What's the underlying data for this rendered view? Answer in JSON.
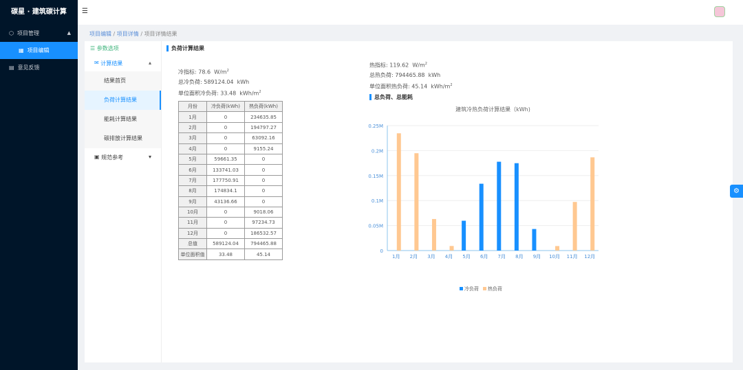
{
  "app": {
    "title": "碳星 · 建筑碳计算"
  },
  "sidebar": {
    "items": [
      {
        "label": "项目管理",
        "icon": "cube-icon"
      },
      {
        "label": "项目编辑",
        "icon": "grid-icon"
      },
      {
        "label": "意见反馈",
        "icon": "feedback-icon"
      }
    ]
  },
  "breadcrumb": [
    "项目编辑",
    "项目详情",
    "项目详情结果"
  ],
  "leftnav": {
    "top": "参数选项",
    "group": "计算结果",
    "items": [
      "结果首页",
      "负荷计算结果",
      "能耗计算结果",
      "碳排放计算结果"
    ],
    "group2": "规范参考"
  },
  "section_title": "负荷计算结果",
  "cold": {
    "index_label": "冷指标:",
    "index": "78.6",
    "index_unit": "W/m",
    "total_label": "总冷负荷:",
    "total": "589124.04",
    "total_unit": "kWh",
    "unit_label": "单位面积冷负荷:",
    "unit": "33.48",
    "unit_unit": "kWh/m"
  },
  "heat": {
    "index_label": "热指标:",
    "index": "119.62",
    "index_unit": "W/m",
    "total_label": "总热负荷:",
    "total": "794465.88",
    "total_unit": "kWh",
    "unit_label": "单位面积热负荷:",
    "unit": "45.14",
    "unit_unit": "kWh/m"
  },
  "table": {
    "headers": [
      "月份",
      "冷负荷(kWh)",
      "热负荷(kWh)"
    ],
    "rows": [
      [
        "1月",
        "0",
        "234635.85"
      ],
      [
        "2月",
        "0",
        "194797.27"
      ],
      [
        "3月",
        "0",
        "63092.16"
      ],
      [
        "4月",
        "0",
        "9155.24"
      ],
      [
        "5月",
        "59661.35",
        "0"
      ],
      [
        "6月",
        "133741.03",
        "0"
      ],
      [
        "7月",
        "177750.91",
        "0"
      ],
      [
        "8月",
        "174834.1",
        "0"
      ],
      [
        "9月",
        "43136.66",
        "0"
      ],
      [
        "10月",
        "0",
        "9018.06"
      ],
      [
        "11月",
        "0",
        "97234.73"
      ],
      [
        "12月",
        "0",
        "186532.57"
      ],
      [
        "总值",
        "589124.04",
        "794465.88"
      ],
      [
        "单位面积值",
        "33.48",
        "45.14"
      ]
    ]
  },
  "chart_section_title": "总负荷、总能耗",
  "chart_data": {
    "type": "bar",
    "title": "建筑冷热负荷计算结果（kWh)",
    "categories": [
      "1月",
      "2月",
      "3月",
      "4月",
      "5月",
      "6月",
      "7月",
      "8月",
      "9月",
      "10月",
      "11月",
      "12月"
    ],
    "series": [
      {
        "name": "冷负荷",
        "color": "#1890ff",
        "values": [
          0,
          0,
          0,
          0,
          59661.35,
          133741.03,
          177750.91,
          174834.1,
          43136.66,
          0,
          0,
          0
        ]
      },
      {
        "name": "热负荷",
        "color": "#ffc891",
        "values": [
          234635.85,
          194797.27,
          63092.16,
          9155.24,
          0,
          0,
          0,
          0,
          0,
          9018.06,
          97234.73,
          186532.57
        ]
      }
    ],
    "yticks": [
      "0",
      "0.05M",
      "0.1M",
      "0.15M",
      "0.2M",
      "0.25M"
    ],
    "ylim": [
      0,
      250000
    ],
    "grid": true,
    "legend": "bottom"
  }
}
